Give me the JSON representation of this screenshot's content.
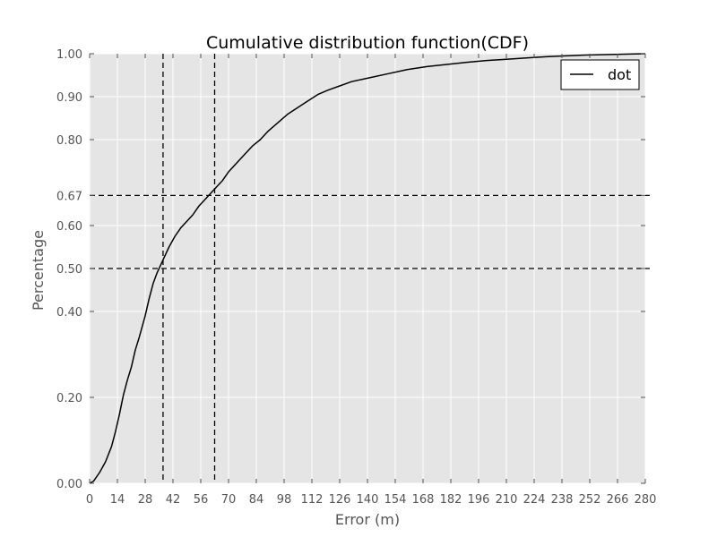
{
  "chart_data": {
    "type": "line",
    "title": "Cumulative distribution function(CDF)",
    "xlabel": "Error (m)",
    "ylabel": "Percentage",
    "xlim": [
      0,
      280
    ],
    "ylim": [
      0,
      1
    ],
    "xticks": [
      0,
      14,
      28,
      42,
      56,
      70,
      84,
      98,
      112,
      126,
      140,
      154,
      168,
      182,
      196,
      210,
      224,
      238,
      252,
      266,
      280
    ],
    "xtick_labels": [
      "0",
      "14",
      "28",
      "42",
      "56",
      "70",
      "84",
      "98",
      "112",
      "126",
      "140",
      "154",
      "168",
      "182",
      "196",
      "210",
      "224",
      "238",
      "252",
      "266",
      "280"
    ],
    "yticks": [
      0,
      0.2,
      0.4,
      0.5,
      0.6,
      0.67,
      0.8,
      0.9,
      1.0
    ],
    "ytick_labels": [
      "0.00",
      "0.20",
      "0.40",
      "0.50",
      "0.60",
      "0.67",
      "0.80",
      "0.90",
      "1.00"
    ],
    "grid": true,
    "legend_position": "top-right",
    "series": [
      {
        "name": "dot",
        "color": "#000000",
        "x": [
          0,
          2,
          5,
          8,
          11,
          13,
          15,
          17,
          19,
          21,
          23,
          25,
          28,
          30,
          32,
          34,
          36,
          38,
          40,
          43,
          46,
          49,
          52,
          55,
          58,
          61,
          64,
          67,
          70,
          74,
          78,
          82,
          86,
          90,
          95,
          100,
          105,
          110,
          115,
          120,
          126,
          132,
          140,
          150,
          160,
          170,
          180,
          190,
          200,
          210,
          220,
          230,
          240,
          250,
          260,
          270,
          280
        ],
        "y": [
          0,
          0.005,
          0.025,
          0.05,
          0.085,
          0.12,
          0.16,
          0.205,
          0.24,
          0.27,
          0.31,
          0.34,
          0.39,
          0.43,
          0.465,
          0.49,
          0.51,
          0.53,
          0.55,
          0.575,
          0.595,
          0.61,
          0.625,
          0.645,
          0.66,
          0.675,
          0.69,
          0.705,
          0.725,
          0.745,
          0.765,
          0.785,
          0.8,
          0.82,
          0.84,
          0.86,
          0.875,
          0.89,
          0.905,
          0.915,
          0.925,
          0.935,
          0.943,
          0.953,
          0.963,
          0.97,
          0.975,
          0.98,
          0.984,
          0.987,
          0.99,
          0.993,
          0.995,
          0.997,
          0.998,
          0.999,
          1.0
        ]
      }
    ],
    "reference_lines": [
      {
        "orientation": "horizontal",
        "value": 0.5,
        "style": "dashed"
      },
      {
        "orientation": "horizontal",
        "value": 0.67,
        "style": "dashed"
      },
      {
        "orientation": "vertical",
        "value": 37,
        "style": "dashed"
      },
      {
        "orientation": "vertical",
        "value": 63,
        "style": "dashed"
      }
    ],
    "colors": {
      "plot_background": "#e5e5e5",
      "grid": "#ffffff",
      "line": "#000000",
      "reference": "#000000"
    }
  }
}
